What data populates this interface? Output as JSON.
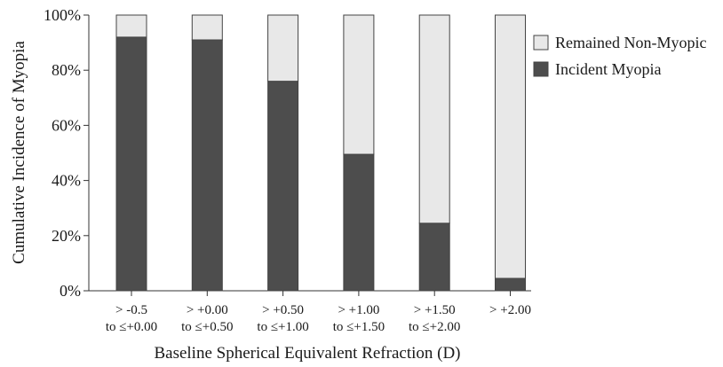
{
  "chart_data": {
    "type": "bar",
    "stacked": true,
    "title": "",
    "xlabel": "Baseline Spherical Equivalent Refraction (D)",
    "ylabel": "Cumulative Incidence of Myopia",
    "ylim": [
      0,
      100
    ],
    "y_ticks": [
      "0%",
      "20%",
      "40%",
      "60%",
      "80%",
      "100%"
    ],
    "categories": [
      [
        "> -0.5",
        "to ≤+0.00"
      ],
      [
        "> +0.00",
        "to ≤+0.50"
      ],
      [
        "> +0.50",
        "to ≤+1.00"
      ],
      [
        "> +1.00",
        "to ≤+1.50"
      ],
      [
        "> +1.50",
        "to ≤+2.00"
      ],
      [
        "> +2.00"
      ]
    ],
    "series": [
      {
        "name": "Incident Myopia",
        "color": "#4d4d4d",
        "values": [
          92,
          91,
          76,
          49.5,
          24.5,
          4.5
        ]
      },
      {
        "name": "Remained Non-Myopic",
        "color": "#e8e8e8",
        "values": [
          8,
          9,
          24,
          50.5,
          75.5,
          95.5
        ]
      }
    ],
    "legend": {
      "position": "right",
      "items": [
        {
          "name": "Remained Non-Myopic",
          "color": "#e8e8e8"
        },
        {
          "name": "Incident Myopia",
          "color": "#4d4d4d"
        }
      ]
    },
    "grid": false
  }
}
